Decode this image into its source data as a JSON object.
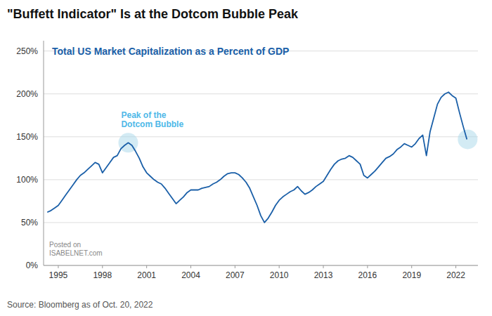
{
  "chart_data": {
    "type": "line",
    "title": "\"Buffett Indicator\" Is at the Dotcom Bubble Peak",
    "subtitle": "Total US Market Capitalization as a Percent of GDP",
    "source": "Source: Bloomberg as of Oct. 20, 2022",
    "watermark": "Posted on\nISABELNET.com",
    "color": "#1a5fa8",
    "grid": true,
    "xlim": [
      1994.0,
      2023.5
    ],
    "xticks": [
      1995,
      1998,
      2001,
      2004,
      2007,
      2010,
      2013,
      2016,
      2019,
      2022
    ],
    "ylim": [
      0,
      262
    ],
    "yticks": [
      {
        "value": 0,
        "label": "0%"
      },
      {
        "value": 50,
        "label": "50%"
      },
      {
        "value": 100,
        "label": "100%"
      },
      {
        "value": 150,
        "label": "150%"
      },
      {
        "value": 200,
        "label": "200%"
      },
      {
        "value": 250,
        "label": "250%"
      }
    ],
    "annotations": [
      {
        "text": "Peak of the\nDotcom Bubble",
        "x": 1999.75,
        "y": 143,
        "color": "#4db8e8",
        "marker_color": "#a8d8ea"
      },
      {
        "x": 2022.8,
        "y": 147,
        "marker_color": "#a8d8ea"
      }
    ],
    "x": [
      1994.25,
      1994.5,
      1994.75,
      1995.0,
      1995.25,
      1995.5,
      1995.75,
      1996.0,
      1996.25,
      1996.5,
      1996.75,
      1997.0,
      1997.25,
      1997.5,
      1997.75,
      1998.0,
      1998.25,
      1998.5,
      1998.75,
      1999.0,
      1999.25,
      1999.5,
      1999.75,
      2000.0,
      2000.25,
      2000.5,
      2000.75,
      2001.0,
      2001.25,
      2001.5,
      2001.75,
      2002.0,
      2002.25,
      2002.5,
      2002.75,
      2003.0,
      2003.25,
      2003.5,
      2003.75,
      2004.0,
      2004.25,
      2004.5,
      2004.75,
      2005.0,
      2005.25,
      2005.5,
      2005.75,
      2006.0,
      2006.25,
      2006.5,
      2006.75,
      2007.0,
      2007.25,
      2007.5,
      2007.75,
      2008.0,
      2008.25,
      2008.5,
      2008.75,
      2009.0,
      2009.25,
      2009.5,
      2009.75,
      2010.0,
      2010.25,
      2010.5,
      2010.75,
      2011.0,
      2011.25,
      2011.5,
      2011.75,
      2012.0,
      2012.25,
      2012.5,
      2012.75,
      2013.0,
      2013.25,
      2013.5,
      2013.75,
      2014.0,
      2014.25,
      2014.5,
      2014.75,
      2015.0,
      2015.25,
      2015.5,
      2015.75,
      2016.0,
      2016.25,
      2016.5,
      2016.75,
      2017.0,
      2017.25,
      2017.5,
      2017.75,
      2018.0,
      2018.25,
      2018.5,
      2018.75,
      2019.0,
      2019.25,
      2019.5,
      2019.75,
      2020.0,
      2020.25,
      2020.5,
      2020.75,
      2021.0,
      2021.25,
      2021.5,
      2021.75,
      2022.0,
      2022.25,
      2022.5,
      2022.75
    ],
    "values": [
      62,
      64,
      67,
      70,
      76,
      82,
      88,
      94,
      100,
      105,
      108,
      112,
      116,
      120,
      118,
      108,
      114,
      120,
      126,
      128,
      136,
      140,
      143,
      140,
      133,
      125,
      115,
      108,
      104,
      100,
      97,
      95,
      90,
      84,
      78,
      72,
      76,
      80,
      85,
      88,
      88,
      88,
      90,
      91,
      92,
      95,
      97,
      100,
      104,
      107,
      108,
      108,
      106,
      102,
      97,
      90,
      80,
      70,
      58,
      50,
      55,
      62,
      70,
      76,
      80,
      83,
      86,
      88,
      92,
      87,
      83,
      85,
      88,
      92,
      95,
      98,
      105,
      112,
      118,
      122,
      124,
      125,
      128,
      126,
      122,
      118,
      105,
      102,
      106,
      110,
      115,
      120,
      125,
      127,
      130,
      135,
      138,
      142,
      140,
      138,
      142,
      148,
      152,
      128,
      156,
      172,
      188,
      196,
      200,
      202,
      198,
      195,
      178,
      162,
      147
    ]
  }
}
